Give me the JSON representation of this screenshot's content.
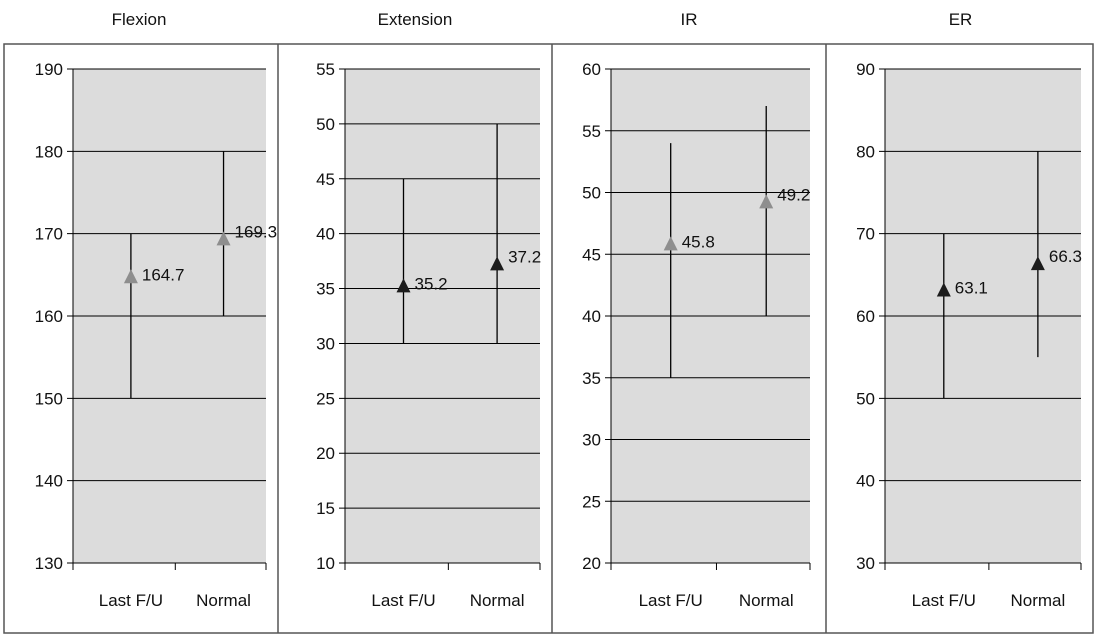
{
  "chart_data": [
    {
      "type": "scatter",
      "title": "Flexion",
      "categories": [
        "Last F/U",
        "Normal"
      ],
      "ylim": [
        130,
        190
      ],
      "yticks": [
        130,
        140,
        150,
        160,
        170,
        180,
        190
      ],
      "series": [
        {
          "values": [
            164.7,
            169.3
          ],
          "range_low": [
            150,
            160
          ],
          "range_high": [
            170,
            180
          ],
          "data_labels": [
            "164.7",
            "169.3"
          ]
        }
      ],
      "marker": "triangle",
      "marker_color": "#8e8e8e",
      "grid": true
    },
    {
      "type": "scatter",
      "title": "Extension",
      "categories": [
        "Last F/U",
        "Normal"
      ],
      "ylim": [
        10,
        55
      ],
      "yticks": [
        10,
        15,
        20,
        25,
        30,
        35,
        40,
        45,
        50,
        55
      ],
      "series": [
        {
          "values": [
            35.2,
            37.2
          ],
          "range_low": [
            30,
            30
          ],
          "range_high": [
            45,
            50
          ],
          "data_labels": [
            "35.2",
            "37.2"
          ]
        }
      ],
      "marker": "triangle",
      "marker_color": "#1c1c1c",
      "grid": true
    },
    {
      "type": "scatter",
      "title": "IR",
      "categories": [
        "Last F/U",
        "Normal"
      ],
      "ylim": [
        20,
        60
      ],
      "yticks": [
        20,
        25,
        30,
        35,
        40,
        45,
        50,
        55,
        60
      ],
      "series": [
        {
          "values": [
            45.8,
            49.2
          ],
          "range_low": [
            35,
            40
          ],
          "range_high": [
            54,
            57
          ],
          "data_labels": [
            "45.8",
            "49.2"
          ]
        }
      ],
      "marker": "triangle",
      "marker_color": "#8e8e8e",
      "grid": true
    },
    {
      "type": "scatter",
      "title": "ER",
      "categories": [
        "Last F/U",
        "Normal"
      ],
      "ylim": [
        30,
        90
      ],
      "yticks": [
        30,
        40,
        50,
        60,
        70,
        80,
        90
      ],
      "series": [
        {
          "values": [
            63.1,
            66.3
          ],
          "range_low": [
            50,
            55
          ],
          "range_high": [
            70,
            80
          ],
          "data_labels": [
            "63.1",
            "66.3"
          ]
        }
      ],
      "marker": "triangle",
      "marker_color": "#1c1c1c",
      "grid": true
    }
  ],
  "colors": {
    "plot_background": "#dcdcdc",
    "gridline": "#000000",
    "panel_border": "#555555"
  }
}
